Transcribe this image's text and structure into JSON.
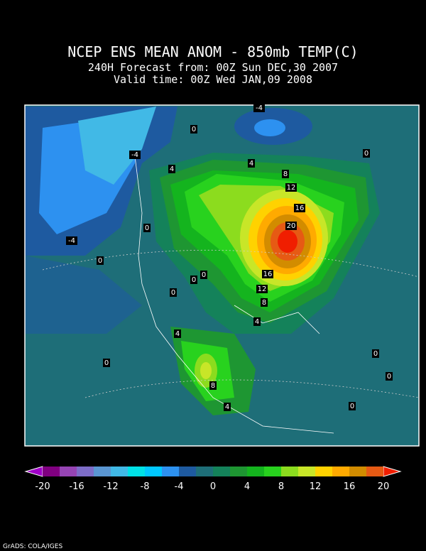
{
  "title": "NCEP ENS MEAN ANOM - 850mb TEMP(C)",
  "subtitles": [
    "240H Forecast from: 00Z Sun DEC,30 2007",
    "Valid time: 00Z Wed JAN,09 2008"
  ],
  "contour_labels": [
    -4,
    0,
    -4,
    4,
    4,
    8,
    0,
    12,
    16,
    20,
    0,
    -4,
    0,
    0,
    0,
    16,
    0,
    12,
    8,
    4,
    4,
    0,
    0,
    0,
    8,
    4,
    0
  ],
  "colorbar": {
    "under_color": "#a000c8",
    "over_color": "#f01e00",
    "colors": [
      "#800080",
      "#9644b4",
      "#7d6dc8",
      "#5a96d2",
      "#41b9e6",
      "#00e1e6",
      "#00c8ff",
      "#2d91f0",
      "#1e5aa0",
      "#1e6e78",
      "#14825a",
      "#1e9632",
      "#14b41e",
      "#28d21e",
      "#8cdc1e",
      "#c8e628",
      "#ffd200",
      "#ffaa00",
      "#d28c00",
      "#e65a14"
    ],
    "ticks": [
      -20,
      -16,
      -12,
      -8,
      -4,
      0,
      4,
      8,
      12,
      16,
      20
    ]
  },
  "credit": "GrADS: COLA/IGES"
}
